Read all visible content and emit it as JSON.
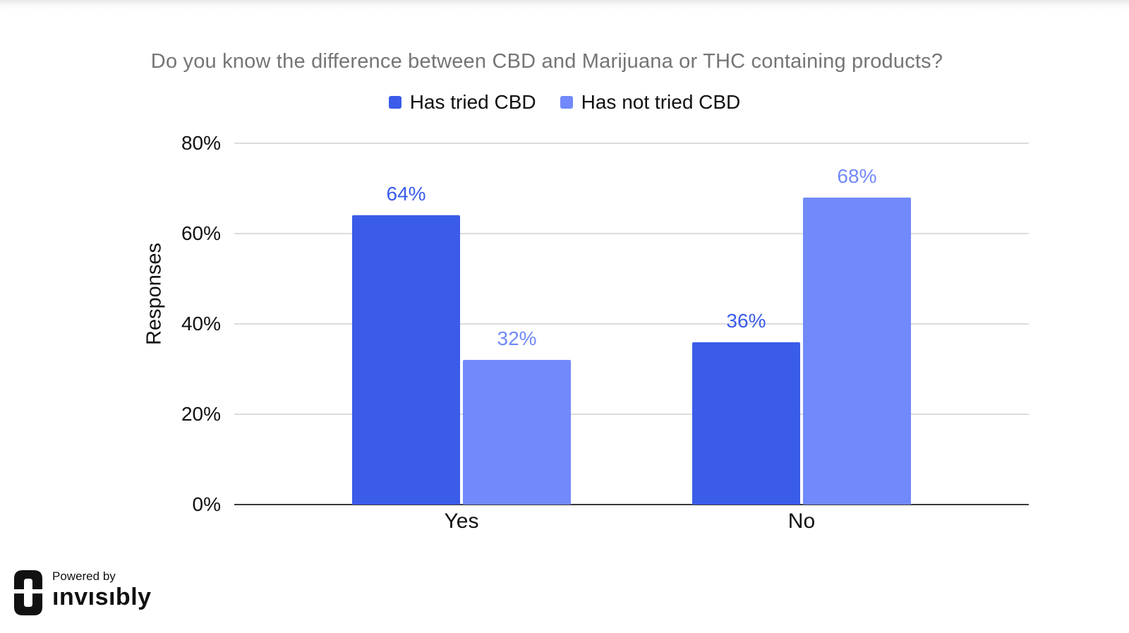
{
  "chart_data": {
    "type": "bar",
    "title": "Do you know the difference between CBD and Marijuana or THC containing products?",
    "categories": [
      "Yes",
      "No"
    ],
    "series": [
      {
        "name": "Has tried CBD",
        "color": "#3b5ce9",
        "values": [
          64,
          36
        ],
        "labels": [
          "64%",
          "36%"
        ]
      },
      {
        "name": "Has not tried CBD",
        "color": "#7189fa",
        "values": [
          32,
          68
        ],
        "labels": [
          "32%",
          "68%"
        ]
      }
    ],
    "ylabel": "Responses",
    "ylim": [
      0,
      80
    ],
    "yticks": [
      0,
      20,
      40,
      60,
      80
    ],
    "ytick_labels": [
      "0%",
      "20%",
      "40%",
      "60%",
      "80%"
    ],
    "grid": true,
    "legend_position": "top",
    "title_color": "#757575",
    "gridline_color": "#dcdcdc",
    "axis_line_color": "#3a3a3a"
  },
  "footer": {
    "powered_by": "Powered by",
    "brand": "ınvısıbly"
  }
}
